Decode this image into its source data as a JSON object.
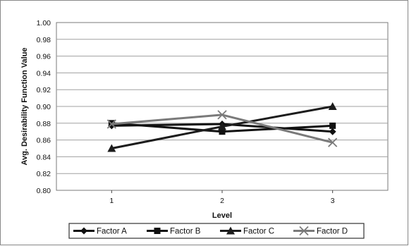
{
  "chart_data": {
    "type": "line",
    "xlabel": "Level",
    "ylabel": "Avg. Desirability Function Value",
    "categories": [
      "1",
      "2",
      "3"
    ],
    "ylim": [
      0.8,
      1.0
    ],
    "yticks": [
      "0.80",
      "0.82",
      "0.84",
      "0.86",
      "0.88",
      "0.90",
      "0.92",
      "0.94",
      "0.96",
      "0.98",
      "1.00"
    ],
    "grid": true,
    "legend_position": "bottom",
    "series": [
      {
        "name": "Factor A",
        "values": [
          0.877,
          0.879,
          0.87
        ],
        "marker": "diamond",
        "color": "#111111"
      },
      {
        "name": "Factor B",
        "values": [
          0.88,
          0.87,
          0.877
        ],
        "marker": "square",
        "color": "#111111"
      },
      {
        "name": "Factor C",
        "values": [
          0.85,
          0.876,
          0.9
        ],
        "marker": "triangle",
        "color": "#1c1c1c"
      },
      {
        "name": "Factor D",
        "values": [
          0.879,
          0.89,
          0.857
        ],
        "marker": "x",
        "color": "#7a7a7a"
      }
    ]
  }
}
